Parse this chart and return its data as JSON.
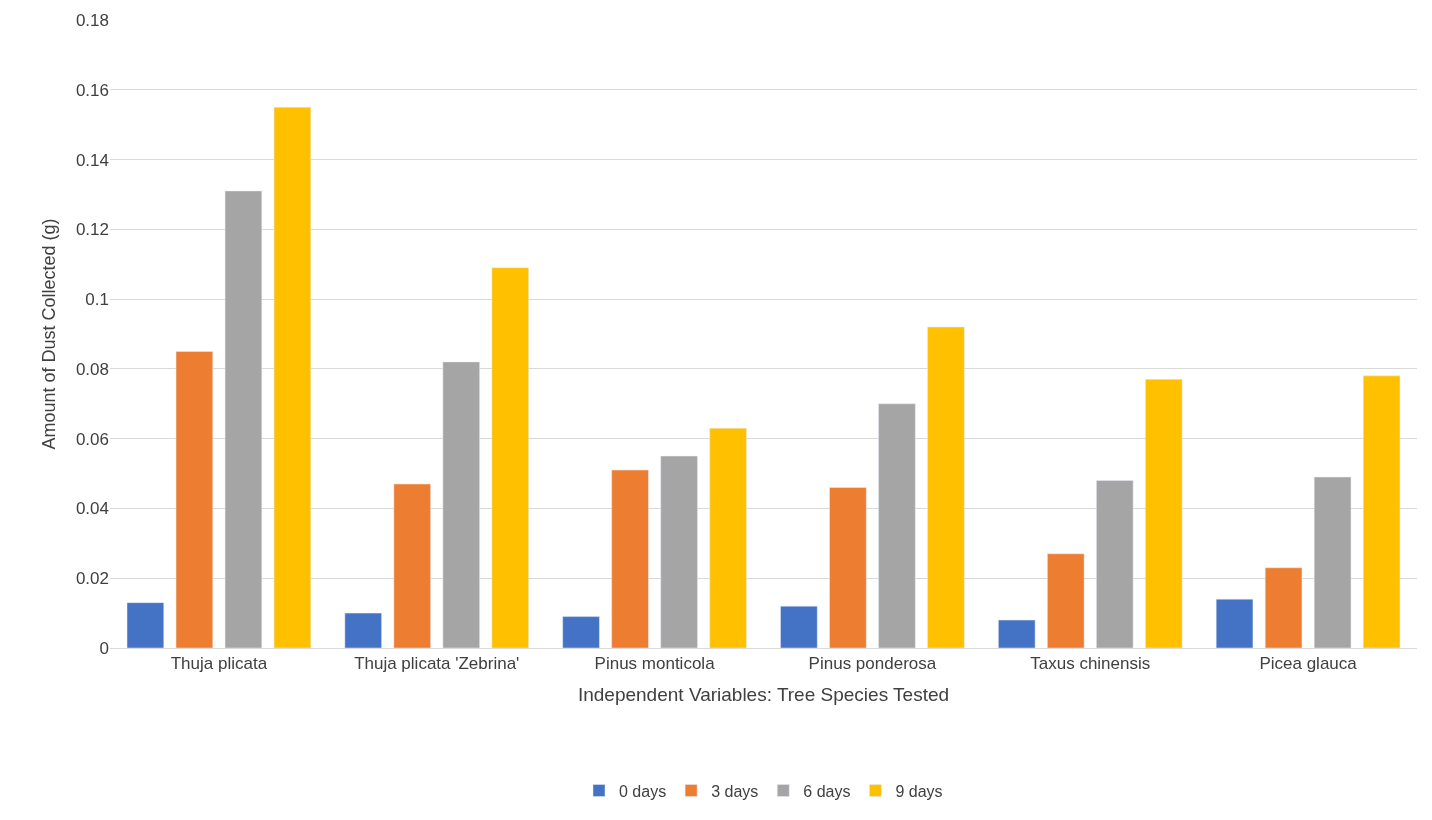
{
  "chart_data": {
    "type": "bar",
    "xlabel": "Independent Variables: Tree Species Tested",
    "ylabel": "Amount of Dust Collected (g)",
    "categories": [
      "Thuja plicata",
      "Thuja plicata 'Zebrina'",
      "Pinus monticola",
      "Pinus ponderosa",
      "Taxus chinensis",
      "Picea glauca"
    ],
    "series": [
      {
        "name": "0 days",
        "color": "#4472c4",
        "values": [
          0.013,
          0.01,
          0.009,
          0.012,
          0.008,
          0.014
        ]
      },
      {
        "name": "3 days",
        "color": "#ed7d31",
        "values": [
          0.085,
          0.047,
          0.051,
          0.046,
          0.027,
          0.023
        ]
      },
      {
        "name": "6 days",
        "color": "#a5a5a5",
        "values": [
          0.131,
          0.082,
          0.055,
          0.07,
          0.048,
          0.049
        ]
      },
      {
        "name": "9 days",
        "color": "#ffc000",
        "values": [
          0.155,
          0.109,
          0.063,
          0.092,
          0.077,
          0.078
        ]
      }
    ],
    "ylim": [
      0,
      0.18
    ],
    "yticks": [
      0,
      0.02,
      0.04,
      0.06,
      0.08,
      0.1,
      0.12,
      0.14,
      0.16,
      0.18
    ],
    "grid": "y",
    "legend": "bottom"
  }
}
